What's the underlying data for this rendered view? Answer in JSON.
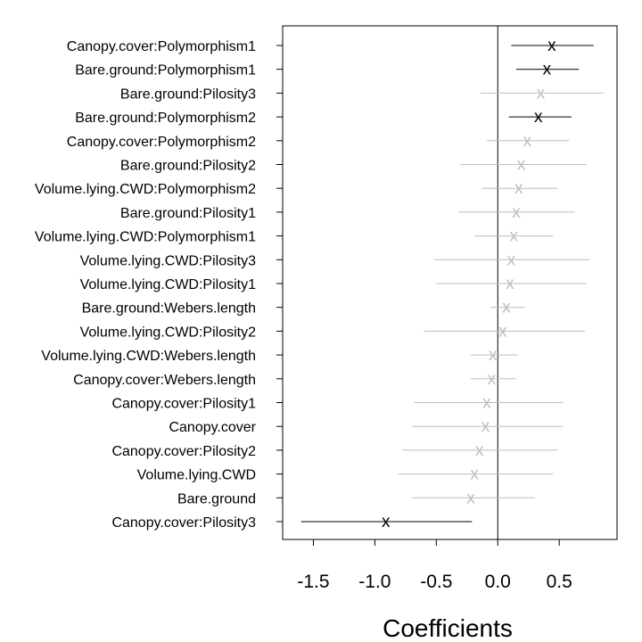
{
  "chart_data": {
    "type": "scatter",
    "subtype": "coefficient-plot",
    "title": "",
    "xlabel": "Coefficients",
    "ylabel": "",
    "xlim": [
      -1.75,
      0.97
    ],
    "xticks": [
      -1.5,
      -1.0,
      -0.5,
      0.0,
      0.5
    ],
    "xtick_labels": [
      "-1.5",
      "-1.0",
      "-0.5",
      "0.0",
      "0.5"
    ],
    "reference_line": 0,
    "marker_symbol": "x",
    "colors": {
      "significant": "#000000",
      "non_significant": "#bebebe"
    },
    "terms": [
      {
        "label": "Canopy.cover:Polymorphism1",
        "estimate": 0.44,
        "lower": 0.11,
        "upper": 0.78,
        "significant": true
      },
      {
        "label": "Bare.ground:Polymorphism1",
        "estimate": 0.4,
        "lower": 0.15,
        "upper": 0.66,
        "significant": true
      },
      {
        "label": "Bare.ground:Pilosity3",
        "estimate": 0.35,
        "lower": -0.14,
        "upper": 0.86,
        "significant": false
      },
      {
        "label": "Bare.ground:Polymorphism2",
        "estimate": 0.33,
        "lower": 0.09,
        "upper": 0.6,
        "significant": true
      },
      {
        "label": "Canopy.cover:Polymorphism2",
        "estimate": 0.24,
        "lower": -0.09,
        "upper": 0.58,
        "significant": false
      },
      {
        "label": "Bare.ground:Pilosity2",
        "estimate": 0.19,
        "lower": -0.31,
        "upper": 0.72,
        "significant": false
      },
      {
        "label": "Volume.lying.CWD:Polymorphism2",
        "estimate": 0.17,
        "lower": -0.13,
        "upper": 0.49,
        "significant": false
      },
      {
        "label": "Bare.ground:Pilosity1",
        "estimate": 0.15,
        "lower": -0.32,
        "upper": 0.63,
        "significant": false
      },
      {
        "label": "Volume.lying.CWD:Polymorphism1",
        "estimate": 0.13,
        "lower": -0.19,
        "upper": 0.45,
        "significant": false
      },
      {
        "label": "Volume.lying.CWD:Pilosity3",
        "estimate": 0.11,
        "lower": -0.52,
        "upper": 0.75,
        "significant": false
      },
      {
        "label": "Volume.lying.CWD:Pilosity1",
        "estimate": 0.1,
        "lower": -0.5,
        "upper": 0.72,
        "significant": false
      },
      {
        "label": "Bare.ground:Webers.length",
        "estimate": 0.07,
        "lower": -0.06,
        "upper": 0.22,
        "significant": false
      },
      {
        "label": "Volume.lying.CWD:Pilosity2",
        "estimate": 0.04,
        "lower": -0.6,
        "upper": 0.71,
        "significant": false
      },
      {
        "label": "Volume.lying.CWD:Webers.length",
        "estimate": -0.04,
        "lower": -0.22,
        "upper": 0.16,
        "significant": false
      },
      {
        "label": "Canopy.cover:Webers.length",
        "estimate": -0.05,
        "lower": -0.22,
        "upper": 0.15,
        "significant": false
      },
      {
        "label": "Canopy.cover:Pilosity1",
        "estimate": -0.09,
        "lower": -0.68,
        "upper": 0.53,
        "significant": false
      },
      {
        "label": "Canopy.cover",
        "estimate": -0.1,
        "lower": -0.7,
        "upper": 0.53,
        "significant": false
      },
      {
        "label": "Canopy.cover:Pilosity2",
        "estimate": -0.15,
        "lower": -0.78,
        "upper": 0.49,
        "significant": false
      },
      {
        "label": "Volume.lying.CWD",
        "estimate": -0.19,
        "lower": -0.81,
        "upper": 0.45,
        "significant": false
      },
      {
        "label": "Bare.ground",
        "estimate": -0.22,
        "lower": -0.7,
        "upper": 0.3,
        "significant": false
      },
      {
        "label": "Canopy.cover:Pilosity3",
        "estimate": -0.91,
        "lower": -1.6,
        "upper": -0.21,
        "significant": true
      }
    ]
  }
}
